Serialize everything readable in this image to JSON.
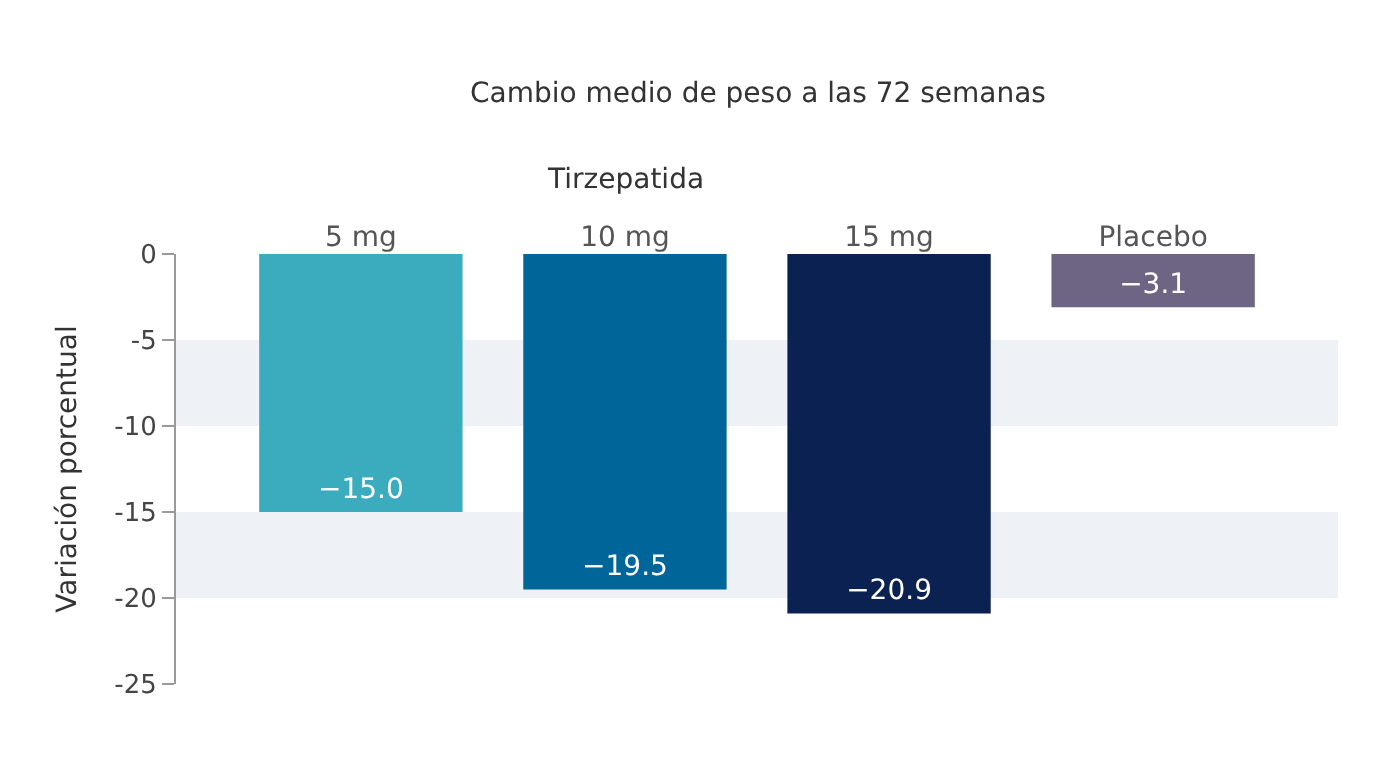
{
  "chart_data": {
    "type": "bar",
    "title": "Cambio medio de peso a las 72 semanas",
    "ylabel": "Variación porcentual",
    "categories": [
      "5 mg",
      "10 mg",
      "15 mg",
      "Placebo"
    ],
    "values": [
      -15.0,
      -19.5,
      -20.9,
      -3.1
    ],
    "colors": [
      "#3aacbd",
      "#006699",
      "#0a2152",
      "#6e6483"
    ],
    "value_labels": [
      "−15.0",
      "−19.5",
      "−20.9",
      "−3.1"
    ],
    "annotations": [
      "Tirzepatida"
    ],
    "ylim": [
      -25,
      0
    ],
    "yticks": [
      0,
      -5,
      -10,
      -15,
      -20,
      -25
    ],
    "bands": [
      {
        "axis": "y",
        "from": -5,
        "to": -10,
        "color": "#eef2f6"
      },
      {
        "axis": "y",
        "from": -15,
        "to": -20,
        "color": "#eef2f6"
      }
    ],
    "grid": false,
    "legend": false
  }
}
